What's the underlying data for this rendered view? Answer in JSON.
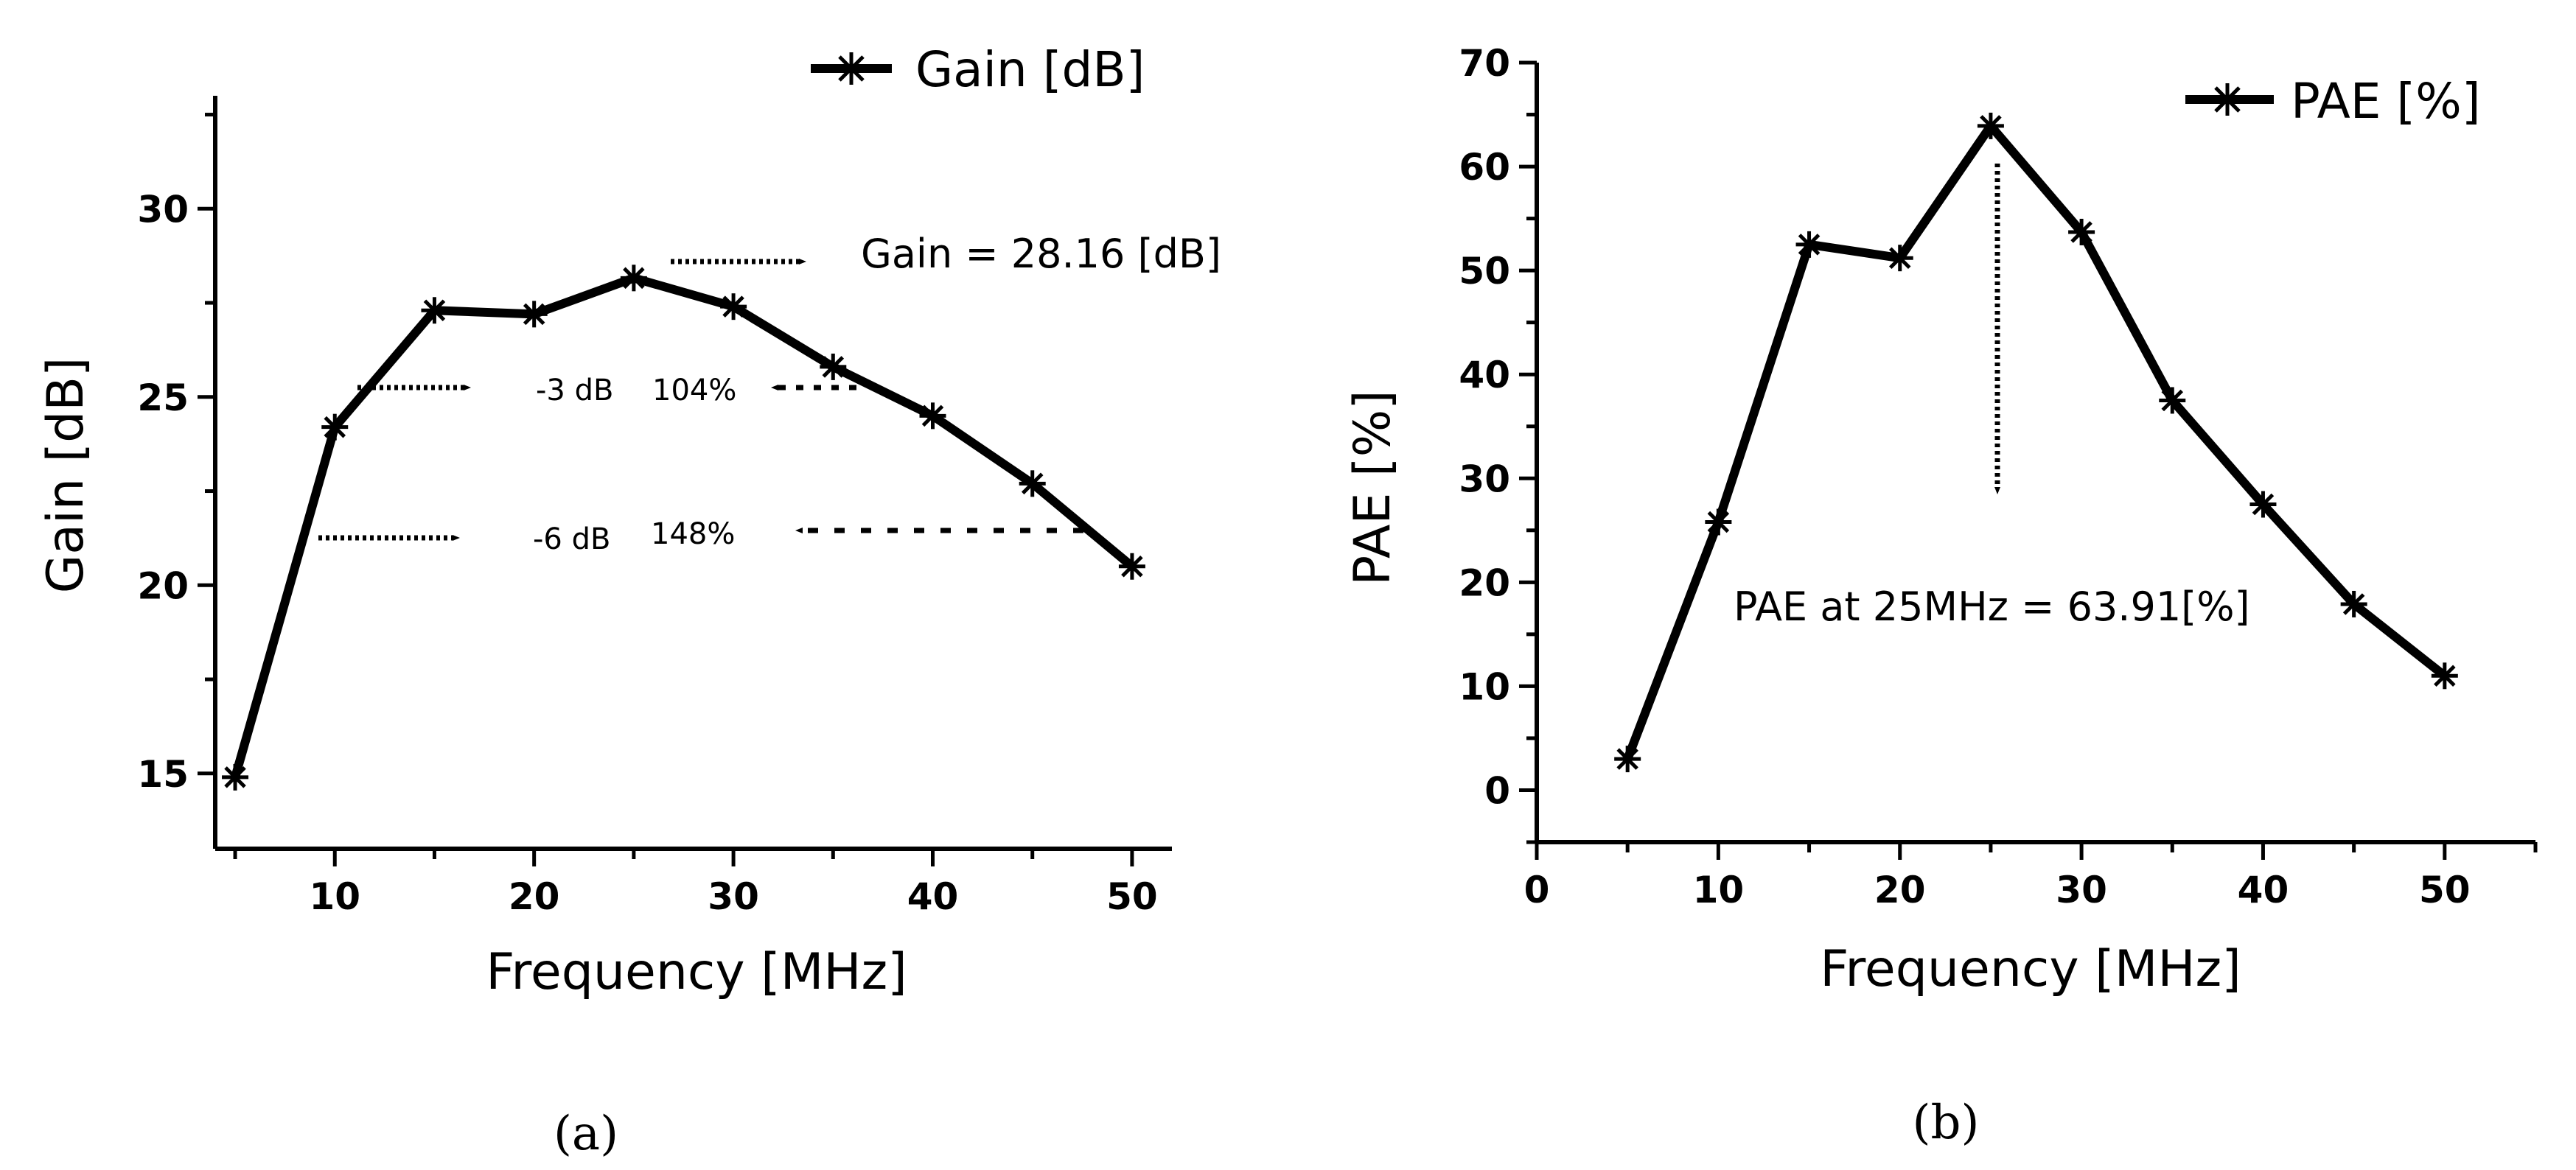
{
  "chart_data": [
    {
      "type": "line",
      "panel_label": "(a)",
      "xlabel": "Frequency [MHz]",
      "ylabel": "Gain [dB]",
      "xlim": [
        4,
        52
      ],
      "ylim": [
        13,
        33
      ],
      "xticks": [
        10,
        20,
        30,
        40,
        50
      ],
      "yticks": [
        15,
        20,
        25,
        30
      ],
      "legend": "top-right",
      "series": [
        {
          "name": "Gain [dB]",
          "marker": "asterisk",
          "x": [
            5,
            10,
            15,
            20,
            25,
            30,
            35,
            40,
            45,
            50
          ],
          "y": [
            14.9,
            24.2,
            27.3,
            27.2,
            28.16,
            27.4,
            25.8,
            24.5,
            22.7,
            20.5
          ]
        }
      ],
      "annotations": [
        {
          "text": "Gain = 28.16 [dB]"
        },
        {
          "text": "-3 dB"
        },
        {
          "text": "104%"
        },
        {
          "text": "-6 dB"
        },
        {
          "text": "148%"
        }
      ]
    },
    {
      "type": "line",
      "panel_label": "(b)",
      "xlabel": "Frequency [MHz]",
      "ylabel": "PAE [%]",
      "xlim": [
        0,
        55
      ],
      "ylim": [
        -5,
        70
      ],
      "xticks": [
        0,
        10,
        20,
        30,
        40,
        50
      ],
      "yticks": [
        0,
        10,
        20,
        30,
        40,
        50,
        60,
        70
      ],
      "legend": "top-right",
      "series": [
        {
          "name": "PAE [%]",
          "marker": "asterisk",
          "x": [
            5,
            10,
            15,
            20,
            25,
            30,
            35,
            40,
            45,
            50
          ],
          "y": [
            3,
            25.8,
            52.5,
            51.2,
            63.91,
            53.7,
            37.5,
            27.5,
            17.9,
            11
          ]
        }
      ],
      "annotations": [
        {
          "text": "PAE at 25MHz = 63.91[%]"
        }
      ]
    }
  ]
}
